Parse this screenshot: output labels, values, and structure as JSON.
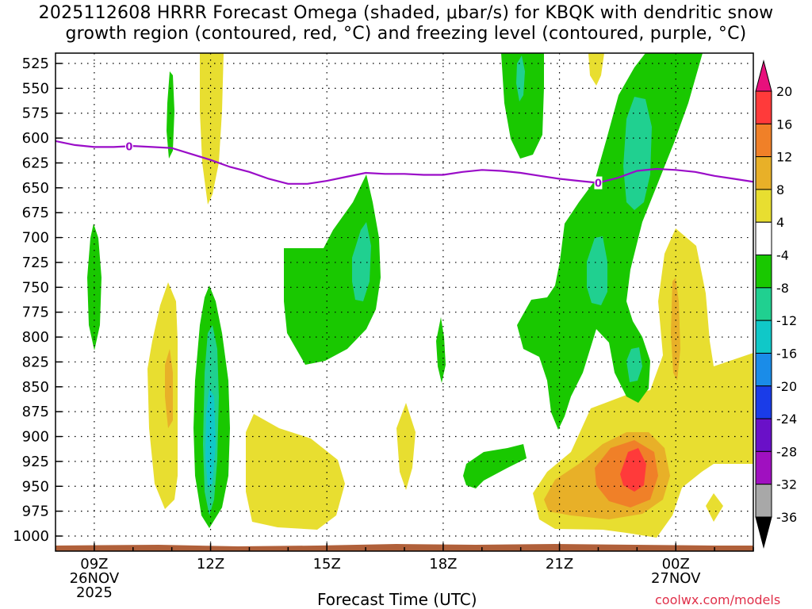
{
  "chart_data": {
    "type": "time-height cross section",
    "title_line1": "2025112608 HRRR Forecast Omega (shaded, μbar/s) for KBQK with dendritic snow",
    "title_line2": "growth region (contoured, red, °C) and freezing level (contoured, purple, °C)",
    "xlabel": "Forecast Time (UTC)",
    "credit": "coolwx.com/models",
    "y_levels": [
      "525",
      "550",
      "575",
      "600",
      "625",
      "650",
      "675",
      "700",
      "725",
      "750",
      "775",
      "800",
      "825",
      "850",
      "875",
      "900",
      "925",
      "950",
      "975",
      "1000"
    ],
    "x_ticks": [
      {
        "label": "09Z",
        "sub": [
          "26NOV",
          "2025"
        ],
        "hour": 9
      },
      {
        "label": "12Z",
        "sub": [],
        "hour": 12
      },
      {
        "label": "15Z",
        "sub": [],
        "hour": 15
      },
      {
        "label": "18Z",
        "sub": [],
        "hour": 18
      },
      {
        "label": "21Z",
        "sub": [],
        "hour": 21
      },
      {
        "label": "00Z",
        "sub": [
          "27NOV"
        ],
        "hour": 24
      }
    ],
    "colorbar_labels": [
      "20",
      "16",
      "12",
      "8",
      "4",
      "-4",
      "-8",
      "-12",
      "-16",
      "-20",
      "-24",
      "-28",
      "-32",
      "-36"
    ],
    "colorbar_colors": [
      "#e8107c",
      "#ff3a3a",
      "#f08028",
      "#e8b028",
      "#e8de30",
      "#ffffff",
      "#19c800",
      "#20d090",
      "#10c8c8",
      "#1a8ce8",
      "#1a3ce8",
      "#6a10c8",
      "#a010c0",
      "#a8a8a8",
      "#000000"
    ],
    "freezing_level": {
      "label": "0",
      "hours": [
        8.0,
        8.5,
        9.0,
        9.5,
        10.0,
        10.5,
        11.0,
        11.5,
        12.0,
        12.5,
        13.0,
        13.5,
        14.0,
        14.5,
        15.0,
        15.5,
        16.0,
        16.5,
        17.0,
        17.5,
        18.0,
        18.5,
        19.0,
        19.5,
        20.0,
        20.5,
        21.0,
        21.5,
        22.0,
        22.5,
        23.0,
        23.5,
        24.0,
        24.5,
        25.0,
        25.5,
        26.0
      ],
      "pressure": [
        603,
        607,
        609,
        609,
        608,
        609,
        610,
        616,
        622,
        629,
        634,
        641,
        646,
        646,
        643,
        639,
        635,
        636,
        636,
        637,
        637,
        634,
        632,
        633,
        635,
        638,
        641,
        643,
        645,
        640,
        633,
        631,
        632,
        634,
        638,
        641,
        644
      ]
    }
  }
}
